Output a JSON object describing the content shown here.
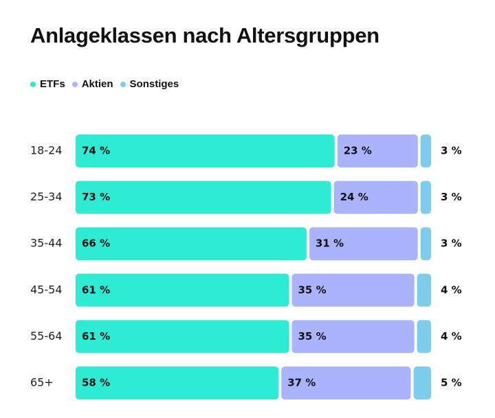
{
  "chart_data": {
    "type": "bar",
    "orientation": "horizontal",
    "stacked": true,
    "title": "Anlageklassen nach Altersgruppen",
    "categories": [
      "18-24",
      "25-34",
      "35-44",
      "45-54",
      "55-64",
      "65+"
    ],
    "series": [
      {
        "name": "ETFs",
        "color": "#2EEBD3",
        "values": [
          74,
          73,
          66,
          61,
          61,
          58
        ],
        "labels": [
          "74 %",
          "73 %",
          "66 %",
          "61 %",
          "61 %",
          "58 %"
        ]
      },
      {
        "name": "Aktien",
        "color": "#AAB4FD",
        "values": [
          23,
          24,
          31,
          35,
          35,
          37
        ],
        "labels": [
          "23 %",
          "24 %",
          "31 %",
          "35  %",
          "35 %",
          "37 %"
        ]
      },
      {
        "name": "Sonstiges",
        "color": "#7DCDED",
        "values": [
          3,
          3,
          3,
          4,
          4,
          5
        ],
        "labels": [
          "3 %",
          "3 %",
          "3 %",
          "4 %",
          "4 %",
          "5 %"
        ]
      }
    ],
    "xlim": [
      0,
      100
    ],
    "legend": "top-left",
    "grid": false
  }
}
